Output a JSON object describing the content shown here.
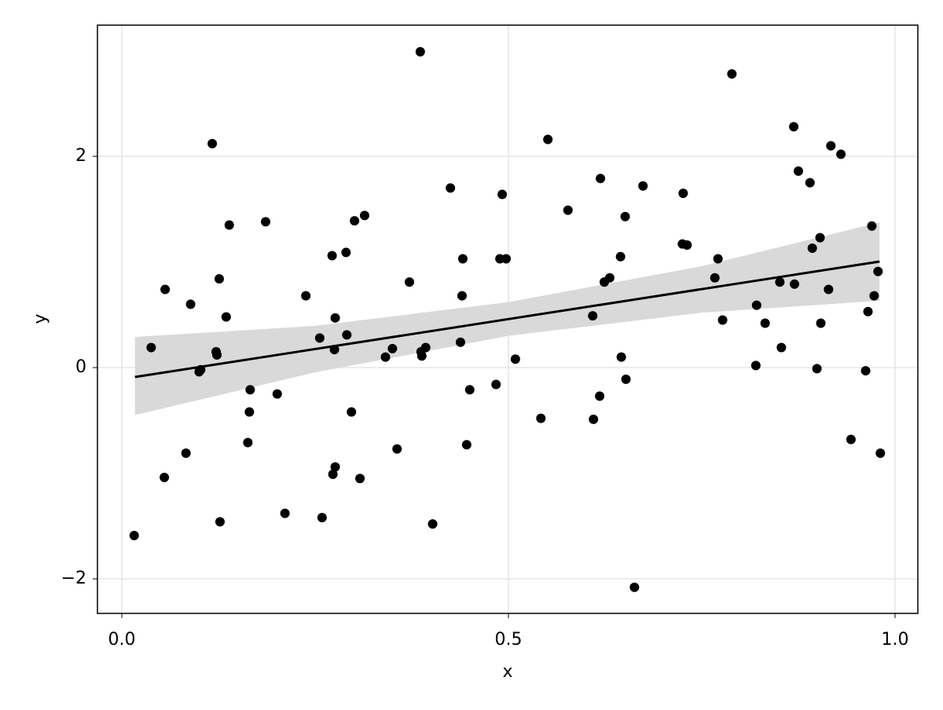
{
  "chart_data": {
    "type": "scatter",
    "x_label": "x",
    "y_label": "y",
    "xlim": [
      -0.0315,
      1.0295
    ],
    "ylim": [
      -2.327,
      3.242
    ],
    "xticks": [
      {
        "value": 0,
        "label": "0.0"
      },
      0.5,
      {
        "value": 1,
        "label": "1.0"
      }
    ],
    "yticks": [
      {
        "value": -2,
        "label": "−2"
      },
      0,
      2
    ],
    "grid": true,
    "color": "#000000",
    "x": [
      0.016,
      0.038,
      0.056,
      0.055,
      0.083,
      0.089,
      0.1,
      0.102,
      0.117,
      0.122,
      0.123,
      0.126,
      0.127,
      0.135,
      0.139,
      0.163,
      0.166,
      0.165,
      0.186,
      0.201,
      0.211,
      0.238,
      0.256,
      0.259,
      0.272,
      0.273,
      0.276,
      0.275,
      0.276,
      0.29,
      0.291,
      0.297,
      0.301,
      0.308,
      0.314,
      0.341,
      0.35,
      0.356,
      0.372,
      0.386,
      0.387,
      0.388,
      0.393,
      0.402,
      0.425,
      0.438,
      0.44,
      0.441,
      0.446,
      0.45,
      0.484,
      0.489,
      0.492,
      0.497,
      0.509,
      0.542,
      0.551,
      0.577,
      0.609,
      0.61,
      0.618,
      0.619,
      0.624,
      0.631,
      0.645,
      0.646,
      0.651,
      0.652,
      0.663,
      0.674,
      0.726,
      0.725,
      0.731,
      0.767,
      0.771,
      0.777,
      0.789,
      0.82,
      0.821,
      0.832,
      0.851,
      0.853,
      0.869,
      0.87,
      0.875,
      0.89,
      0.893,
      0.899,
      0.903,
      0.904,
      0.914,
      0.917,
      0.93,
      0.943,
      0.962,
      0.965,
      0.97,
      0.973,
      0.978,
      0.981
    ],
    "y": [
      -1.59,
      0.19,
      0.74,
      -1.04,
      -0.81,
      0.6,
      -0.04,
      -0.02,
      2.12,
      0.15,
      0.12,
      0.84,
      -1.46,
      0.48,
      1.35,
      -0.71,
      -0.21,
      -0.42,
      1.38,
      -0.25,
      -1.38,
      0.68,
      0.28,
      -1.42,
      1.06,
      -1.01,
      -0.94,
      0.17,
      0.47,
      1.09,
      0.31,
      -0.42,
      1.39,
      -1.05,
      1.44,
      0.1,
      0.18,
      -0.77,
      0.81,
      2.99,
      0.15,
      0.11,
      0.19,
      -1.48,
      1.7,
      0.24,
      0.68,
      1.03,
      -0.73,
      -0.21,
      -0.16,
      1.03,
      1.64,
      1.03,
      0.08,
      -0.48,
      2.16,
      1.49,
      0.49,
      -0.49,
      -0.27,
      1.79,
      0.81,
      0.85,
      1.05,
      0.1,
      1.43,
      -0.11,
      -2.08,
      1.72,
      1.65,
      1.17,
      1.16,
      0.85,
      1.03,
      0.45,
      2.78,
      0.02,
      0.59,
      0.42,
      0.81,
      0.19,
      2.28,
      0.79,
      1.86,
      1.75,
      1.13,
      -0.01,
      1.23,
      0.42,
      0.74,
      2.1,
      2.02,
      -0.68,
      -0.03,
      0.53,
      1.34,
      0.68,
      0.91,
      -0.81
    ],
    "fit": {
      "x": [
        0.017,
        0.98
      ],
      "y": [
        -0.089,
        1.004
      ]
    },
    "band": {
      "x": [
        0.017,
        0.25,
        0.5,
        0.75,
        0.98
      ],
      "lower": [
        -0.45,
        -0.045,
        0.3,
        0.52,
        0.632
      ],
      "upper": [
        0.29,
        0.395,
        0.62,
        0.96,
        1.375
      ],
      "color": "#d9d9d9"
    }
  }
}
